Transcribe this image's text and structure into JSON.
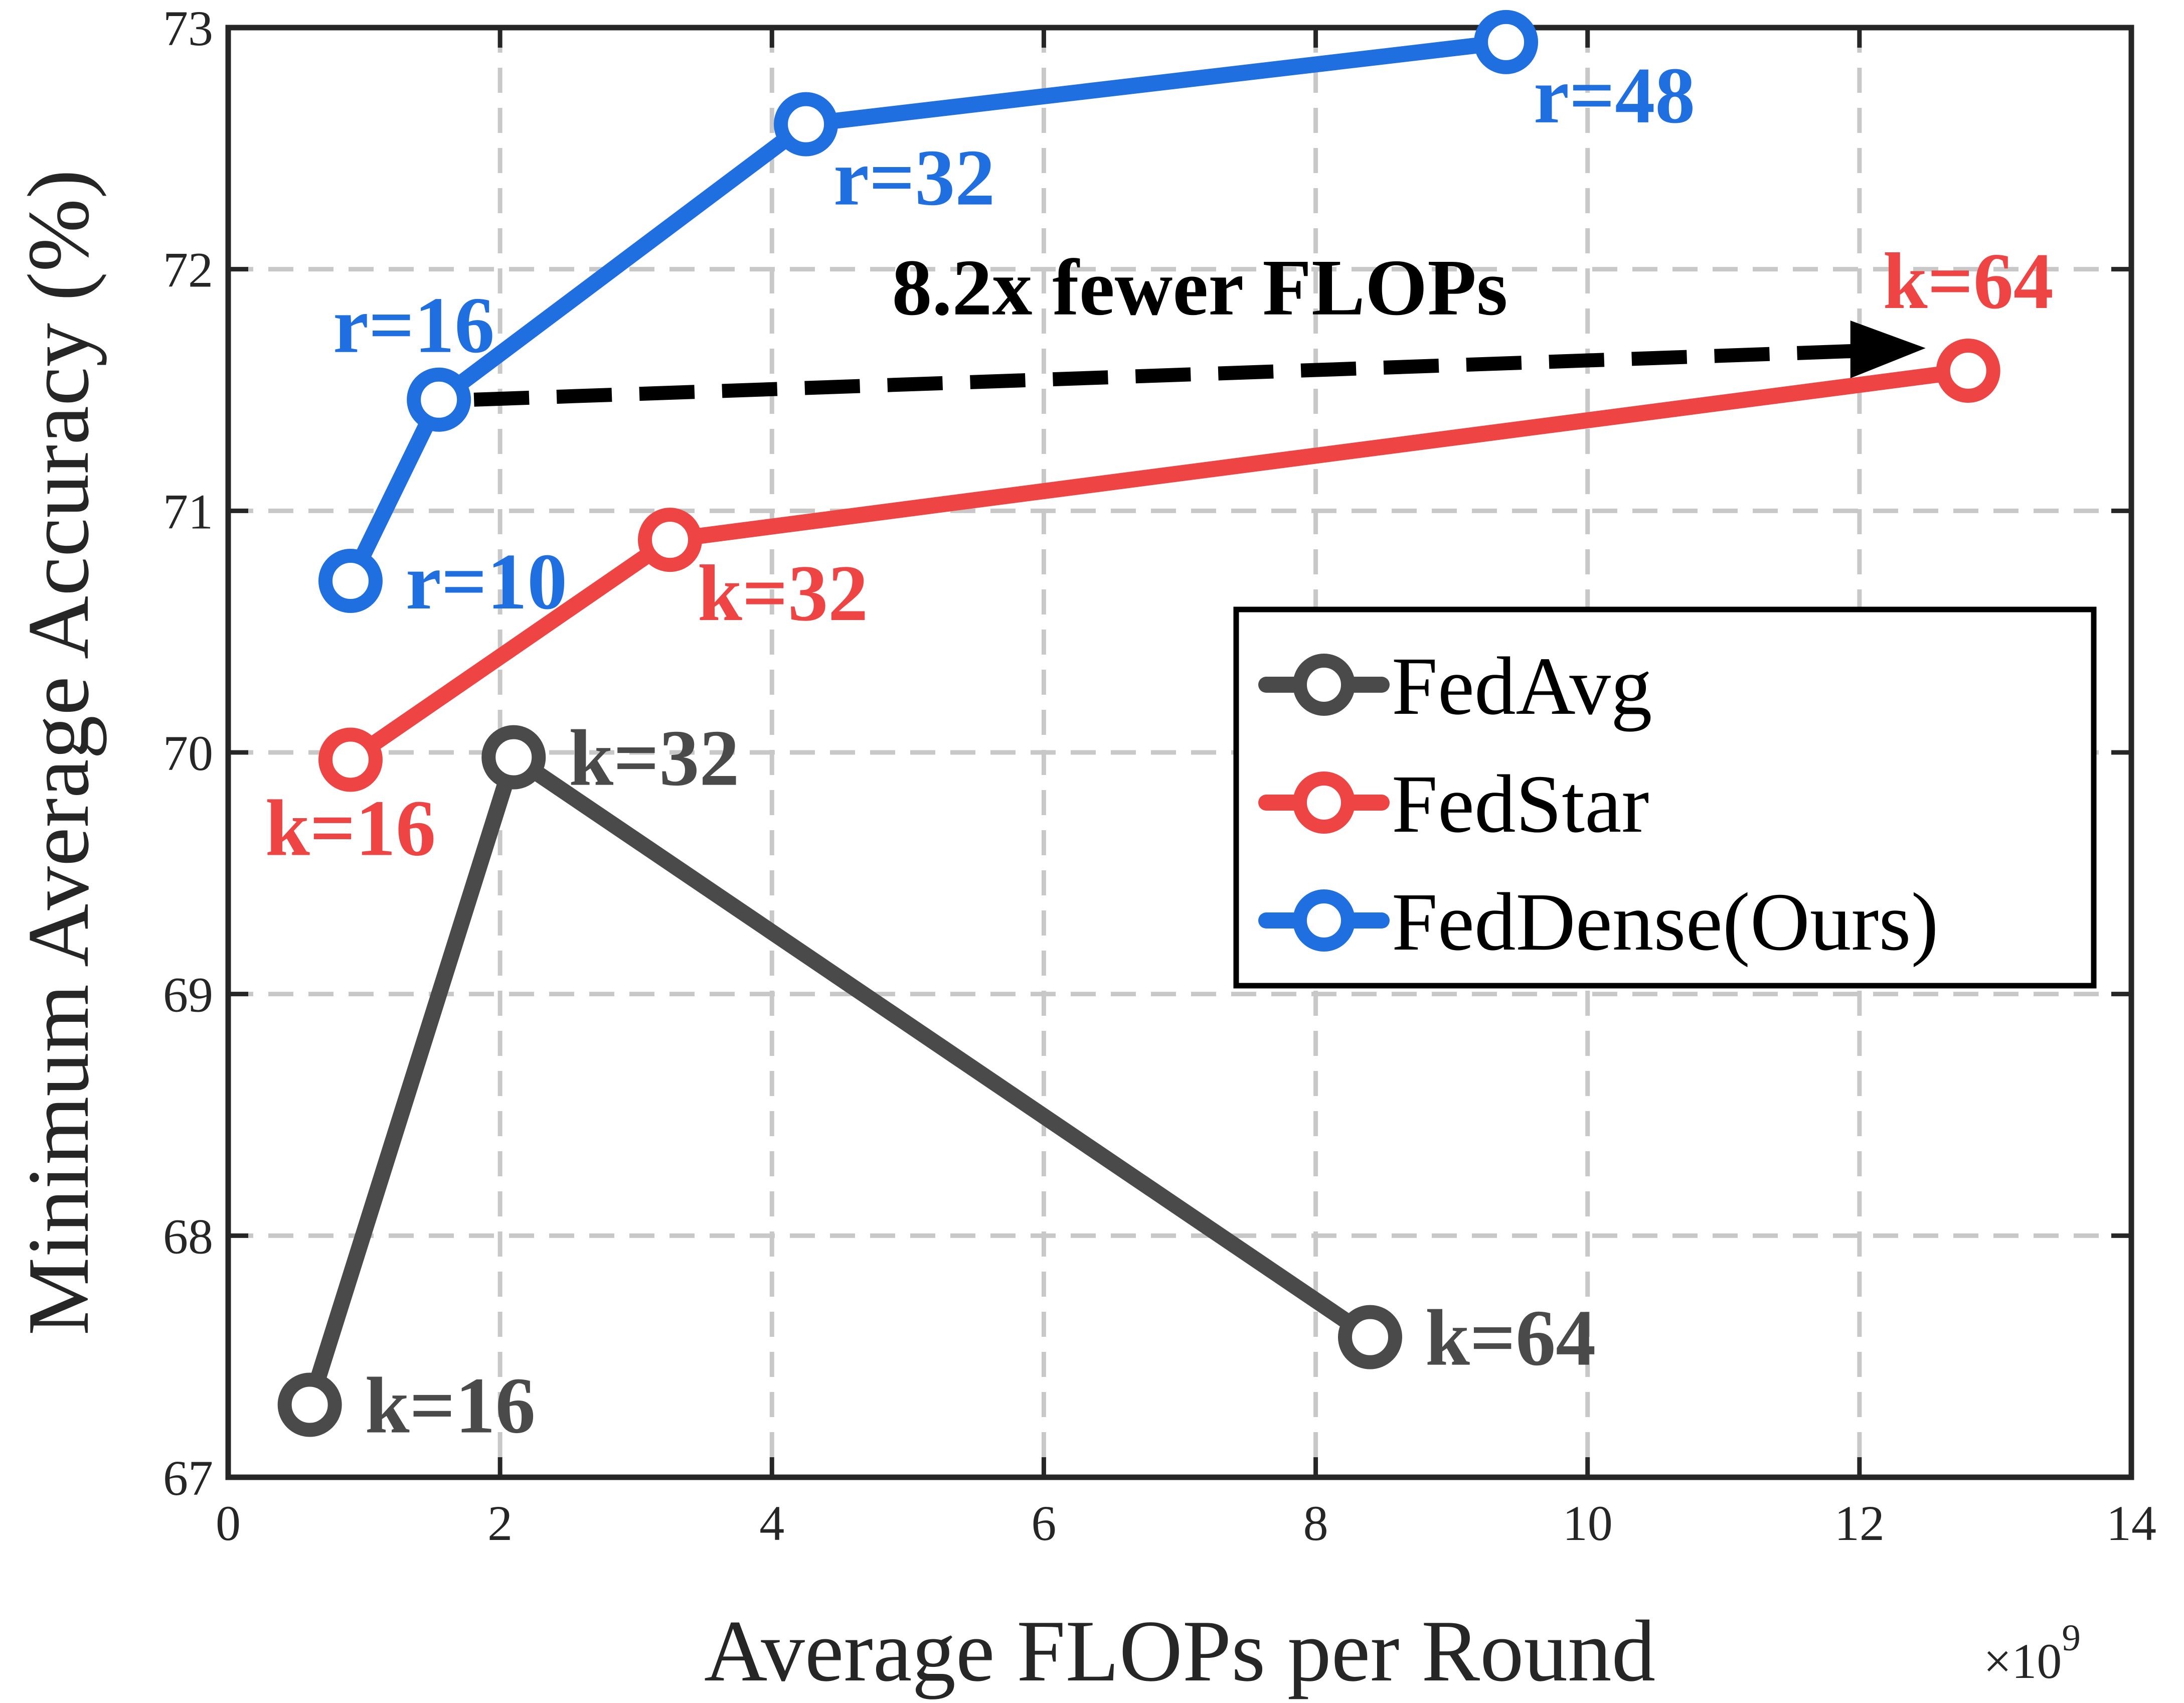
{
  "chart_data": {
    "type": "line",
    "xlabel": "Average FLOPs per Round",
    "x_exponent_label": "×10",
    "x_exponent_power": "9",
    "ylabel": "Minimum Average Accuracy (%)",
    "xlim": [
      0,
      14
    ],
    "ylim": [
      67,
      73
    ],
    "xticks": [
      0,
      2,
      4,
      6,
      8,
      10,
      12,
      14
    ],
    "yticks": [
      67,
      68,
      69,
      70,
      71,
      72,
      73
    ],
    "grid": true,
    "legend_position": "right",
    "series": [
      {
        "name": "FedAvg",
        "color": "#4a4a4a",
        "points": [
          {
            "x": 0.6,
            "y": 67.3,
            "label": "k=16",
            "label_pos": "right"
          },
          {
            "x": 2.1,
            "y": 69.98,
            "label": "k=32",
            "label_pos": "right"
          },
          {
            "x": 8.4,
            "y": 67.58,
            "label": "k=64",
            "label_pos": "right"
          }
        ]
      },
      {
        "name": "FedStar",
        "color": "#ee4444",
        "points": [
          {
            "x": 0.9,
            "y": 69.97,
            "label": "k=16",
            "label_pos": "below"
          },
          {
            "x": 3.25,
            "y": 70.88,
            "label": "k=32",
            "label_pos": "below-right"
          },
          {
            "x": 12.8,
            "y": 71.58,
            "label": "k=64",
            "label_pos": "above"
          }
        ]
      },
      {
        "name": "FedDense(Ours)",
        "color": "#1f6fe0",
        "points": [
          {
            "x": 0.9,
            "y": 70.71,
            "label": "r=10",
            "label_pos": "right"
          },
          {
            "x": 1.55,
            "y": 71.46,
            "label": "r=16",
            "label_pos": "above-left"
          },
          {
            "x": 4.25,
            "y": 72.6,
            "label": "r=32",
            "label_pos": "below-right"
          },
          {
            "x": 9.4,
            "y": 72.94,
            "label": "r=48",
            "label_pos": "below-right"
          }
        ]
      }
    ],
    "annotation": {
      "text": "8.2x fewer FLOPs",
      "arrow_from": {
        "x": 1.55,
        "y": 71.46
      },
      "arrow_to": {
        "x": 12.8,
        "y": 71.58
      }
    }
  }
}
